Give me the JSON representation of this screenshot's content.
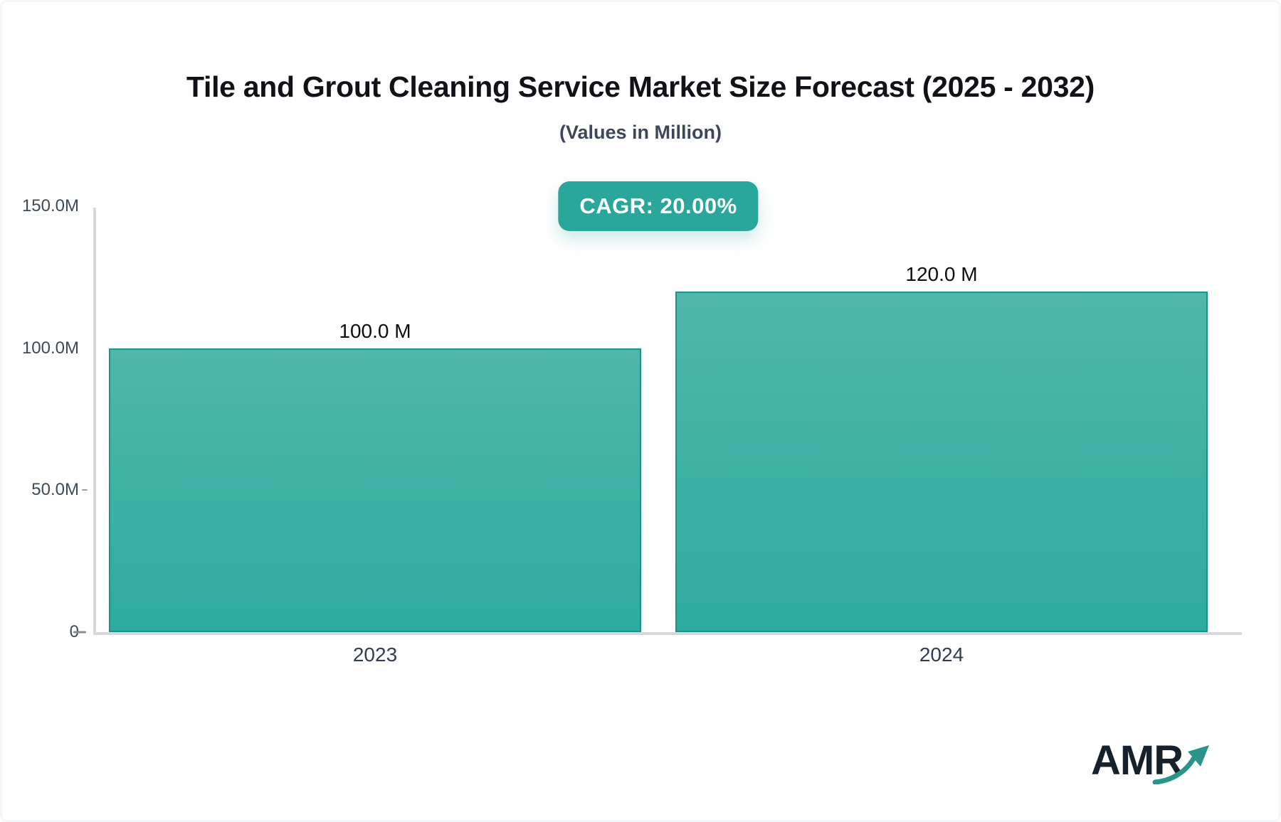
{
  "header": {
    "title": "Tile and Grout Cleaning Service Market Size Forecast (2025 - 2032)",
    "subtitle": "(Values in Million)",
    "cagr_badge": "CAGR: 20.00%"
  },
  "chart_data": {
    "type": "bar",
    "title": "Tile and Grout Cleaning Service Market Size Forecast (2025 - 2032)",
    "subtitle": "(Values in Million)",
    "unit": "Million",
    "categories": [
      "2023",
      "2024"
    ],
    "values": [
      100.0,
      120.0
    ],
    "value_labels": [
      "100.0 M",
      "120.0 M"
    ],
    "ylim": [
      0,
      150
    ],
    "y_ticks": [
      {
        "label": "150.0M",
        "value": 150
      },
      {
        "label": "100.0M",
        "value": 100
      },
      {
        "label": "50.0M",
        "value": 50
      },
      {
        "label": "0",
        "value": 0
      }
    ],
    "tick_marks": [
      50,
      0
    ],
    "grid": false,
    "legend_position": "none",
    "annotations": [
      {
        "text": "CAGR: 20.00%",
        "position": "top-center"
      }
    ]
  },
  "colors": {
    "bar_fill_top": "#4fb7ac",
    "bar_fill_bottom": "#2eab9e",
    "bar_border": "#1a948a",
    "badge_bg": "#2aa69b",
    "badge_text": "#ffffff",
    "axis_line": "#d6d8dd",
    "title_text": "#101217",
    "subtitle_text": "#3d4759",
    "tick_text": "#40495b",
    "value_text": "#0b0e12",
    "logo_text": "#16212c",
    "logo_arrow": "#2a938a"
  },
  "footer": {
    "logo_text": "AMR",
    "logo_icon": "growth-arrow-icon"
  }
}
